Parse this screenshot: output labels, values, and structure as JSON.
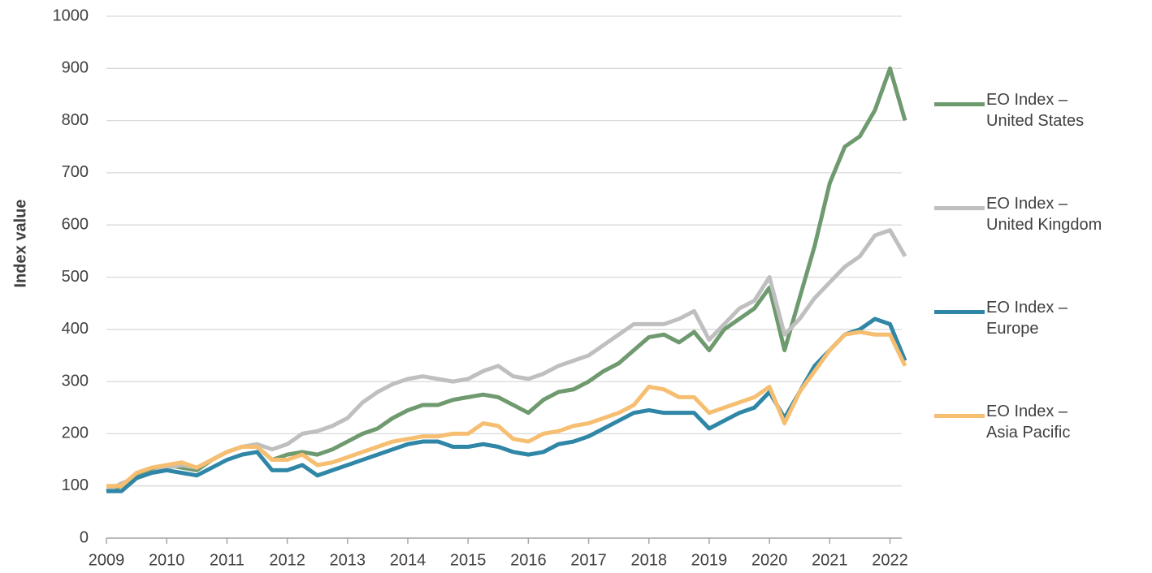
{
  "chart_data": {
    "type": "line",
    "y_label": "Index value",
    "x": [
      2009,
      2009.25,
      2009.5,
      2009.75,
      2010,
      2010.25,
      2010.5,
      2010.75,
      2011,
      2011.25,
      2011.5,
      2011.75,
      2012,
      2012.25,
      2012.5,
      2012.75,
      2013,
      2013.25,
      2013.5,
      2013.75,
      2014,
      2014.25,
      2014.5,
      2014.75,
      2015,
      2015.25,
      2015.5,
      2015.75,
      2016,
      2016.25,
      2016.5,
      2016.75,
      2017,
      2017.25,
      2017.5,
      2017.75,
      2018,
      2018.25,
      2018.5,
      2018.75,
      2019,
      2019.25,
      2019.5,
      2019.75,
      2020,
      2020.25,
      2020.5,
      2020.75,
      2021,
      2021.25,
      2021.5,
      2021.75,
      2022,
      2022.25
    ],
    "series": [
      {
        "name": "EO Index –\nUnited States",
        "color": "#6f9a6f",
        "values": [
          90,
          100,
          120,
          130,
          140,
          135,
          130,
          150,
          165,
          175,
          175,
          150,
          160,
          165,
          160,
          170,
          185,
          200,
          210,
          230,
          245,
          255,
          255,
          265,
          270,
          275,
          270,
          255,
          240,
          265,
          280,
          285,
          300,
          320,
          335,
          360,
          385,
          390,
          375,
          395,
          360,
          400,
          420,
          440,
          480,
          360,
          460,
          560,
          680,
          750,
          770,
          820,
          900,
          800
        ]
      },
      {
        "name": "EO Index –\nUnited Kingdom",
        "color": "#bfbfbf",
        "values": [
          90,
          105,
          115,
          125,
          135,
          140,
          135,
          150,
          165,
          175,
          180,
          170,
          180,
          200,
          205,
          215,
          230,
          260,
          280,
          295,
          305,
          310,
          305,
          300,
          305,
          320,
          330,
          310,
          305,
          315,
          330,
          340,
          350,
          370,
          390,
          410,
          410,
          410,
          420,
          435,
          380,
          410,
          440,
          455,
          500,
          390,
          420,
          460,
          490,
          520,
          540,
          580,
          590,
          540
        ]
      },
      {
        "name": "EO Index –\nEurope",
        "color": "#2f86a6",
        "values": [
          90,
          90,
          115,
          125,
          130,
          125,
          120,
          135,
          150,
          160,
          165,
          130,
          130,
          140,
          120,
          130,
          140,
          150,
          160,
          170,
          180,
          185,
          185,
          175,
          175,
          180,
          175,
          165,
          160,
          165,
          180,
          185,
          195,
          210,
          225,
          240,
          245,
          240,
          240,
          240,
          210,
          225,
          240,
          250,
          280,
          230,
          280,
          330,
          360,
          390,
          400,
          420,
          410,
          340
        ]
      },
      {
        "name": "EO Index –\nAsia Pacific",
        "color": "#f6be70",
        "values": [
          100,
          100,
          125,
          135,
          140,
          145,
          135,
          150,
          165,
          175,
          175,
          150,
          150,
          160,
          140,
          145,
          155,
          165,
          175,
          185,
          190,
          195,
          195,
          200,
          200,
          220,
          215,
          190,
          185,
          200,
          205,
          215,
          220,
          230,
          240,
          255,
          290,
          285,
          270,
          270,
          240,
          250,
          260,
          270,
          290,
          220,
          280,
          320,
          360,
          390,
          395,
          390,
          390,
          330
        ]
      }
    ],
    "xlim": [
      2009,
      2022.33
    ],
    "xticks": [
      2009,
      2010,
      2011,
      2012,
      2013,
      2014,
      2015,
      2016,
      2017,
      2018,
      2019,
      2020,
      2021,
      2022
    ],
    "ylim": [
      0,
      1000
    ],
    "yticks": [
      0,
      100,
      200,
      300,
      400,
      500,
      600,
      700,
      800,
      900,
      1000
    ],
    "grid": true
  }
}
